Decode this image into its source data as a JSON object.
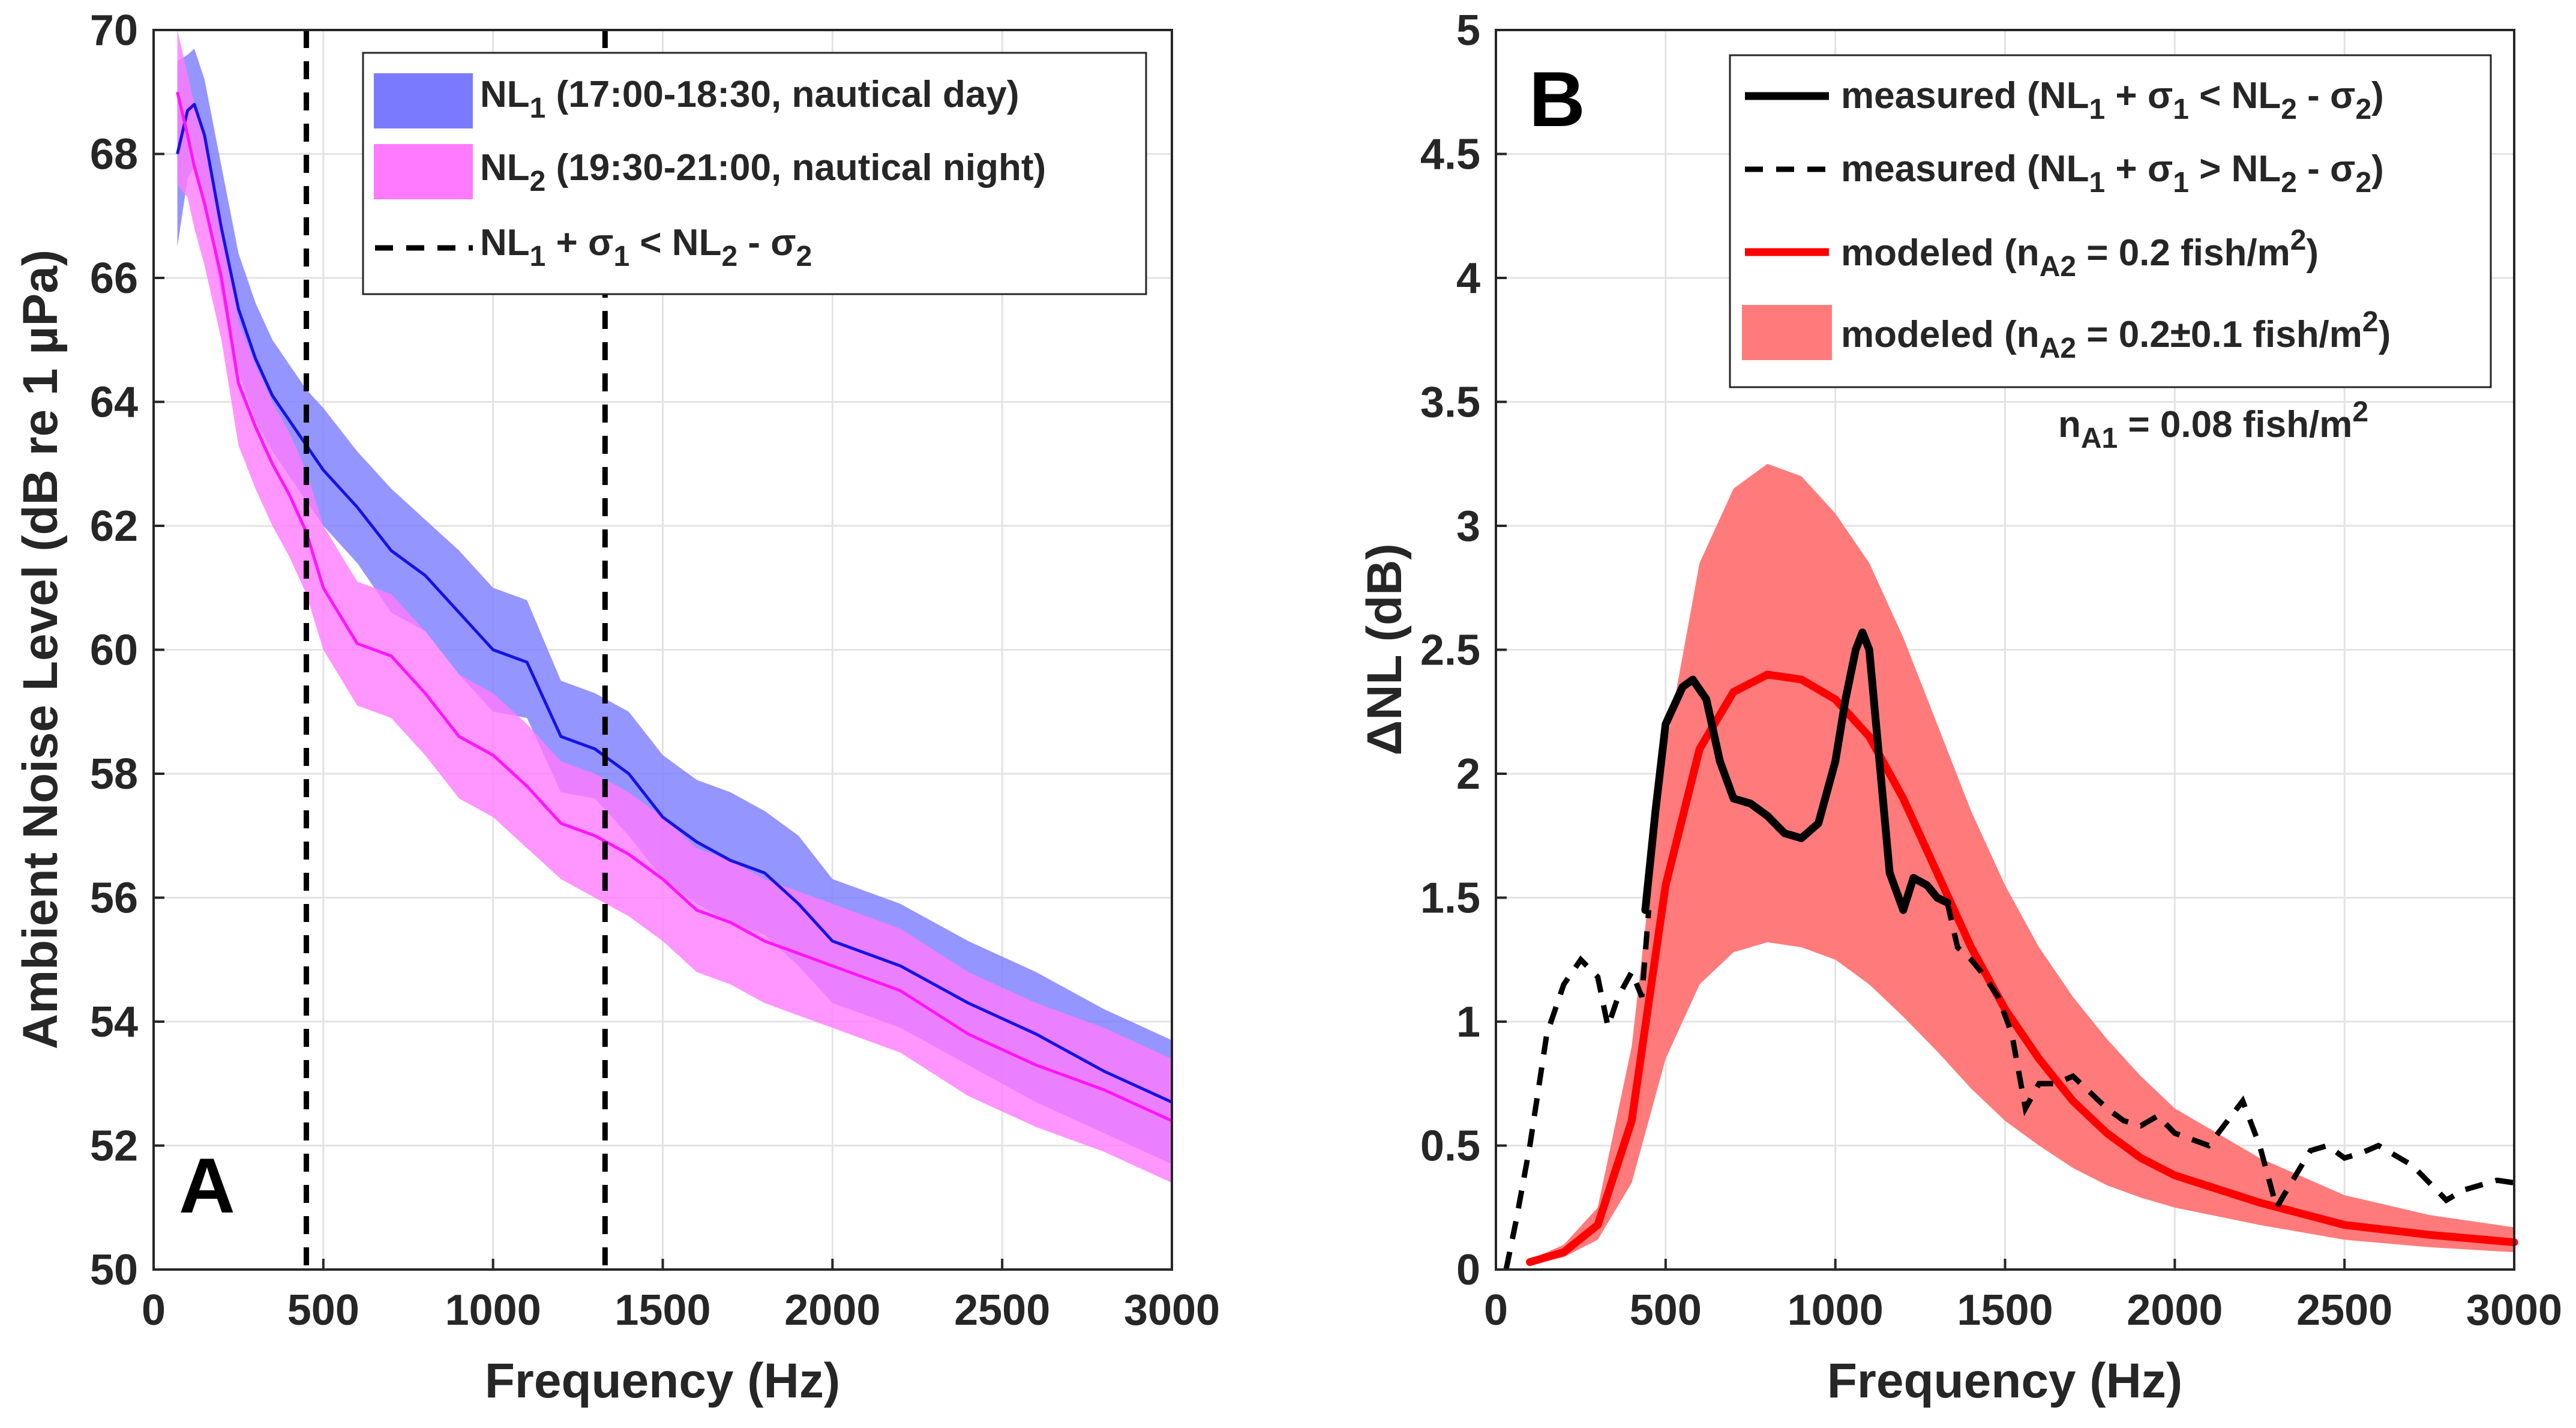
{
  "chart_data": [
    {
      "type": "line",
      "panel": "A",
      "xlabel": "Frequency (Hz)",
      "ylabel": "Ambient Noise Level (dB re 1 µPa)",
      "xlim": [
        0,
        3000
      ],
      "ylim": [
        50,
        70
      ],
      "xticks": [
        "0",
        "500",
        "1000",
        "1500",
        "2000",
        "2500",
        "3000"
      ],
      "yticks": [
        "50",
        "52",
        "54",
        "56",
        "58",
        "60",
        "62",
        "64",
        "66",
        "68",
        "70"
      ],
      "grid": true,
      "legend_position": "top-right",
      "vlines": [
        450,
        1330
      ],
      "series": [
        {
          "name": "NL1 (17:00-18:30, nautical day)",
          "legend_main": "NL",
          "legend_sub": "1",
          "legend_rest": " (17:00-18:30, nautical day)",
          "line_color": "#1414e6",
          "band_color": "#7a7aff",
          "x": [
            70,
            100,
            120,
            150,
            200,
            250,
            300,
            350,
            400,
            450,
            500,
            600,
            700,
            800,
            900,
            1000,
            1100,
            1200,
            1300,
            1400,
            1500,
            1600,
            1700,
            1800,
            1900,
            2000,
            2200,
            2400,
            2600,
            2800,
            3000
          ],
          "y": [
            68.0,
            68.7,
            68.8,
            68.3,
            66.8,
            65.5,
            64.7,
            64.1,
            63.7,
            63.3,
            62.9,
            62.3,
            61.6,
            61.2,
            60.6,
            60.0,
            59.8,
            58.6,
            58.4,
            58.0,
            57.3,
            56.9,
            56.6,
            56.4,
            55.9,
            55.3,
            54.9,
            54.3,
            53.8,
            53.2,
            52.7
          ],
          "lower": [
            66.5,
            67.6,
            67.8,
            67.3,
            65.7,
            64.5,
            63.7,
            63.2,
            62.8,
            62.4,
            62.0,
            61.4,
            60.6,
            60.3,
            59.6,
            59.0,
            58.9,
            57.7,
            57.6,
            57.0,
            56.3,
            55.9,
            55.6,
            55.4,
            54.9,
            54.3,
            53.9,
            53.3,
            52.7,
            52.2,
            51.7
          ],
          "upper": [
            69.5,
            69.6,
            69.7,
            69.2,
            67.8,
            66.4,
            65.6,
            65.0,
            64.6,
            64.2,
            63.9,
            63.2,
            62.6,
            62.1,
            61.6,
            61.0,
            60.8,
            59.5,
            59.3,
            59.0,
            58.3,
            57.9,
            57.7,
            57.4,
            57.0,
            56.3,
            55.9,
            55.3,
            54.8,
            54.2,
            53.7
          ]
        },
        {
          "name": "NL2 (19:30-21:00, nautical night)",
          "legend_main": "NL",
          "legend_sub": "2",
          "legend_rest": " (19:30-21:00, nautical night)",
          "line_color": "#ff14ff",
          "band_color": "#ff7aff",
          "x": [
            70,
            100,
            120,
            150,
            200,
            250,
            300,
            350,
            400,
            450,
            500,
            600,
            700,
            800,
            900,
            1000,
            1100,
            1200,
            1300,
            1400,
            1500,
            1600,
            1700,
            1800,
            1900,
            2000,
            2200,
            2400,
            2600,
            2800,
            3000
          ],
          "y": [
            69.0,
            68.3,
            67.8,
            67.2,
            66.0,
            64.3,
            63.6,
            63.0,
            62.5,
            61.9,
            61.0,
            60.1,
            59.9,
            59.3,
            58.6,
            58.3,
            57.8,
            57.2,
            57.0,
            56.7,
            56.3,
            55.8,
            55.6,
            55.3,
            55.1,
            54.9,
            54.5,
            53.8,
            53.3,
            52.9,
            52.4
          ],
          "lower": [
            67.5,
            67.3,
            66.8,
            66.2,
            65.0,
            63.3,
            62.6,
            62.0,
            61.5,
            60.9,
            60.0,
            59.1,
            58.9,
            58.3,
            57.6,
            57.3,
            56.8,
            56.3,
            56.0,
            55.7,
            55.3,
            54.8,
            54.6,
            54.3,
            54.1,
            53.9,
            53.5,
            52.8,
            52.3,
            51.9,
            51.4
          ],
          "upper": [
            70.0,
            69.3,
            68.8,
            68.2,
            67.0,
            65.3,
            64.6,
            64.0,
            63.5,
            62.9,
            62.0,
            61.1,
            60.9,
            60.3,
            59.6,
            59.3,
            58.8,
            58.2,
            58.0,
            57.7,
            57.3,
            56.8,
            56.6,
            56.3,
            56.1,
            55.9,
            55.5,
            54.8,
            54.3,
            53.9,
            53.4
          ]
        }
      ],
      "dashed_legend": {
        "p1": "NL",
        "s1": "1",
        "p2": " + σ",
        "s2": "1",
        "p3": " < NL",
        "s3": "2",
        "p4": " - σ",
        "s4": "2"
      },
      "panel_label": "A"
    },
    {
      "type": "line",
      "panel": "B",
      "xlabel": "Frequency (Hz)",
      "ylabel": "ΔNL (dB)",
      "xlim": [
        0,
        3000
      ],
      "ylim": [
        0,
        5
      ],
      "xticks": [
        "0",
        "500",
        "1000",
        "1500",
        "2000",
        "2500",
        "3000"
      ],
      "yticks": [
        "0",
        "0.5",
        "1",
        "1.5",
        "2",
        "2.5",
        "3",
        "3.5",
        "4",
        "4.5",
        "5"
      ],
      "grid": true,
      "legend_position": "top-right",
      "series": [
        {
          "name": "measured (NL1 + σ1 < NL2 - σ2)",
          "style": "solid",
          "color": "#000000",
          "x": [
            440,
            470,
            500,
            550,
            580,
            620,
            660,
            700,
            750,
            800,
            850,
            900,
            950,
            1000,
            1030,
            1060,
            1080,
            1100,
            1130,
            1160,
            1200,
            1230,
            1270,
            1300,
            1330
          ],
          "y": [
            1.45,
            1.85,
            2.2,
            2.35,
            2.38,
            2.3,
            2.05,
            1.9,
            1.88,
            1.83,
            1.76,
            1.74,
            1.8,
            2.05,
            2.3,
            2.5,
            2.57,
            2.5,
            2.05,
            1.6,
            1.45,
            1.58,
            1.55,
            1.5,
            1.48
          ]
        },
        {
          "name": "measured (NL1 + σ1 > NL2 - σ2)",
          "style": "dashed",
          "color": "#000000",
          "x": [
            30,
            60,
            100,
            150,
            200,
            250,
            300,
            330,
            360,
            400,
            430,
            450,
            1330,
            1360,
            1400,
            1430,
            1480,
            1520,
            1560,
            1600,
            1650,
            1700,
            1800,
            1850,
            1900,
            1950,
            2000,
            2100,
            2200,
            2250,
            2300,
            2330,
            2400,
            2450,
            2500,
            2550,
            2600,
            2700,
            2800,
            2850,
            2950,
            3000
          ],
          "y": [
            0.0,
            0.2,
            0.5,
            0.95,
            1.15,
            1.25,
            1.18,
            0.98,
            1.1,
            1.2,
            1.1,
            1.45,
            1.48,
            1.3,
            1.25,
            1.2,
            1.1,
            0.95,
            0.65,
            0.75,
            0.75,
            0.78,
            0.65,
            0.6,
            0.58,
            0.62,
            0.55,
            0.5,
            0.68,
            0.5,
            0.25,
            0.32,
            0.48,
            0.5,
            0.45,
            0.47,
            0.5,
            0.42,
            0.28,
            0.32,
            0.36,
            0.35
          ]
        },
        {
          "name": "modeled (nA2 = 0.2 fish/m2)",
          "style": "solid",
          "color": "#ff0000",
          "x": [
            100,
            200,
            300,
            400,
            500,
            600,
            700,
            800,
            900,
            1000,
            1100,
            1200,
            1300,
            1400,
            1500,
            1600,
            1700,
            1800,
            1900,
            2000,
            2250,
            2500,
            2750,
            3000
          ],
          "y": [
            0.03,
            0.07,
            0.18,
            0.6,
            1.55,
            2.1,
            2.33,
            2.4,
            2.38,
            2.3,
            2.15,
            1.9,
            1.6,
            1.3,
            1.05,
            0.85,
            0.68,
            0.55,
            0.45,
            0.38,
            0.27,
            0.18,
            0.14,
            0.11
          ]
        },
        {
          "name": "modeled (nA2 = 0.2±0.1 fish/m2)",
          "style": "band",
          "color": "#ff7b7b",
          "x": [
            100,
            200,
            300,
            400,
            500,
            600,
            700,
            800,
            900,
            1000,
            1100,
            1200,
            1300,
            1400,
            1500,
            1600,
            1700,
            1800,
            1900,
            2000,
            2250,
            2500,
            2750,
            3000
          ],
          "lower": [
            0.02,
            0.05,
            0.12,
            0.35,
            0.85,
            1.15,
            1.28,
            1.32,
            1.3,
            1.25,
            1.15,
            1.02,
            0.88,
            0.73,
            0.6,
            0.5,
            0.41,
            0.34,
            0.29,
            0.25,
            0.18,
            0.12,
            0.09,
            0.07
          ],
          "upper": [
            0.04,
            0.1,
            0.25,
            0.9,
            2.1,
            2.85,
            3.15,
            3.25,
            3.2,
            3.05,
            2.85,
            2.55,
            2.2,
            1.85,
            1.55,
            1.3,
            1.1,
            0.93,
            0.78,
            0.65,
            0.45,
            0.3,
            0.22,
            0.17
          ]
        }
      ],
      "legend": [
        {
          "pre": "measured (NL",
          "s1": "1",
          "mid1": " + σ",
          "s2": "1",
          "mid2": " < NL",
          "s3": "2",
          "mid3": " - σ",
          "s4": "2",
          "post": ")"
        },
        {
          "pre": "measured (NL",
          "s1": "1",
          "mid1": " + σ",
          "s2": "1",
          "mid2": " > NL",
          "s3": "2",
          "mid3": " - σ",
          "s4": "2",
          "post": ")"
        },
        {
          "pre": "modeled (n",
          "sub": "A2",
          "mid": " = 0.2 fish/m",
          "sup": "2",
          "post": ")"
        },
        {
          "pre": "modeled (n",
          "sub": "A2",
          "mid": " = 0.2±0.1 fish/m",
          "sup": "2",
          "post": ")"
        }
      ],
      "annotation": {
        "pre": "n",
        "sub": "A1",
        "mid": " = 0.08 fish/m",
        "sup": "2"
      },
      "panel_label": "B"
    }
  ]
}
